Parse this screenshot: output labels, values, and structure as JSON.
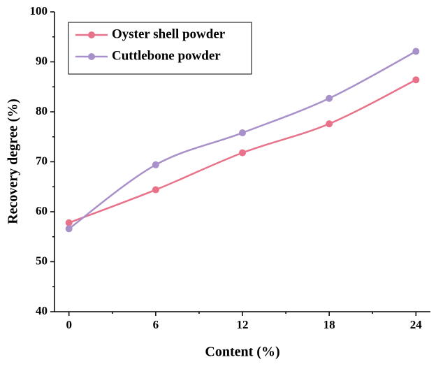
{
  "chart_data": {
    "type": "line",
    "xlabel": "Content (%)",
    "ylabel": "Recovery degree (%)",
    "x": [
      0,
      6,
      12,
      18,
      24
    ],
    "series": [
      {
        "name": "Oyster shell powder",
        "color": "#e8728a",
        "values": [
          57.8,
          64.4,
          71.8,
          77.6,
          86.4
        ]
      },
      {
        "name": "Cuttlebone powder",
        "color": "#a891c8",
        "values": [
          56.6,
          69.4,
          75.8,
          82.7,
          92.1
        ]
      }
    ],
    "xlim": [
      -1,
      25
    ],
    "xticks": [
      0,
      6,
      12,
      18,
      24
    ],
    "ylim": [
      40,
      100
    ],
    "yticks": [
      40,
      50,
      60,
      70,
      80,
      90,
      100
    ],
    "smooth": true,
    "legend": "upper left"
  }
}
